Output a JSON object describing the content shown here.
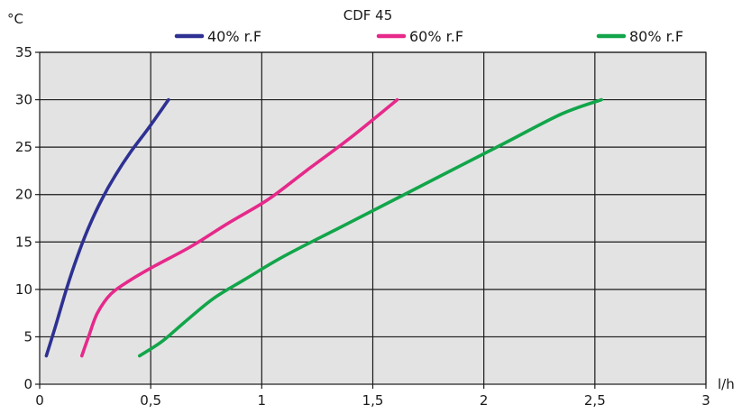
{
  "chart_data": {
    "type": "line",
    "title": "CDF 45",
    "xlabel": "l/h",
    "ylabel": "°C",
    "xlim": [
      0,
      3
    ],
    "ylim": [
      0,
      35
    ],
    "x_ticks": [
      0,
      0.5,
      1,
      1.5,
      2,
      2.5,
      3
    ],
    "x_tick_labels": [
      "0",
      "0,5",
      "1",
      "1,5",
      "2",
      "2,5",
      "3"
    ],
    "y_ticks": [
      0,
      5,
      10,
      15,
      20,
      25,
      30,
      35
    ],
    "y_tick_labels": [
      "0",
      "5",
      "10",
      "15",
      "20",
      "25",
      "30",
      "35"
    ],
    "grid": true,
    "background": "#e3e3e3",
    "legend_position": "top",
    "series": [
      {
        "name": "40% r.F",
        "color": "#2e3192",
        "x": [
          0.03,
          0.07,
          0.12,
          0.17,
          0.22,
          0.28,
          0.34,
          0.41,
          0.49,
          0.58
        ],
        "y": [
          3,
          6,
          10,
          13.5,
          16.5,
          19.5,
          22,
          24.5,
          27,
          30
        ]
      },
      {
        "name": "60% r.F",
        "color": "#e6298a",
        "x": [
          0.19,
          0.22,
          0.26,
          0.32,
          0.41,
          0.52,
          0.68,
          0.85,
          1.03,
          1.2,
          1.4,
          1.61
        ],
        "y": [
          3,
          5,
          7.5,
          9.5,
          11,
          12.5,
          14.5,
          17,
          19.5,
          22.5,
          26,
          30
        ]
      },
      {
        "name": "80% r.F",
        "color": "#12a54a",
        "x": [
          0.45,
          0.55,
          0.65,
          0.78,
          0.92,
          1.1,
          1.35,
          1.6,
          1.85,
          2.1,
          2.35,
          2.53
        ],
        "y": [
          3,
          4.5,
          6.5,
          9,
          11,
          13.5,
          16.5,
          19.5,
          22.5,
          25.5,
          28.5,
          30
        ]
      }
    ]
  }
}
